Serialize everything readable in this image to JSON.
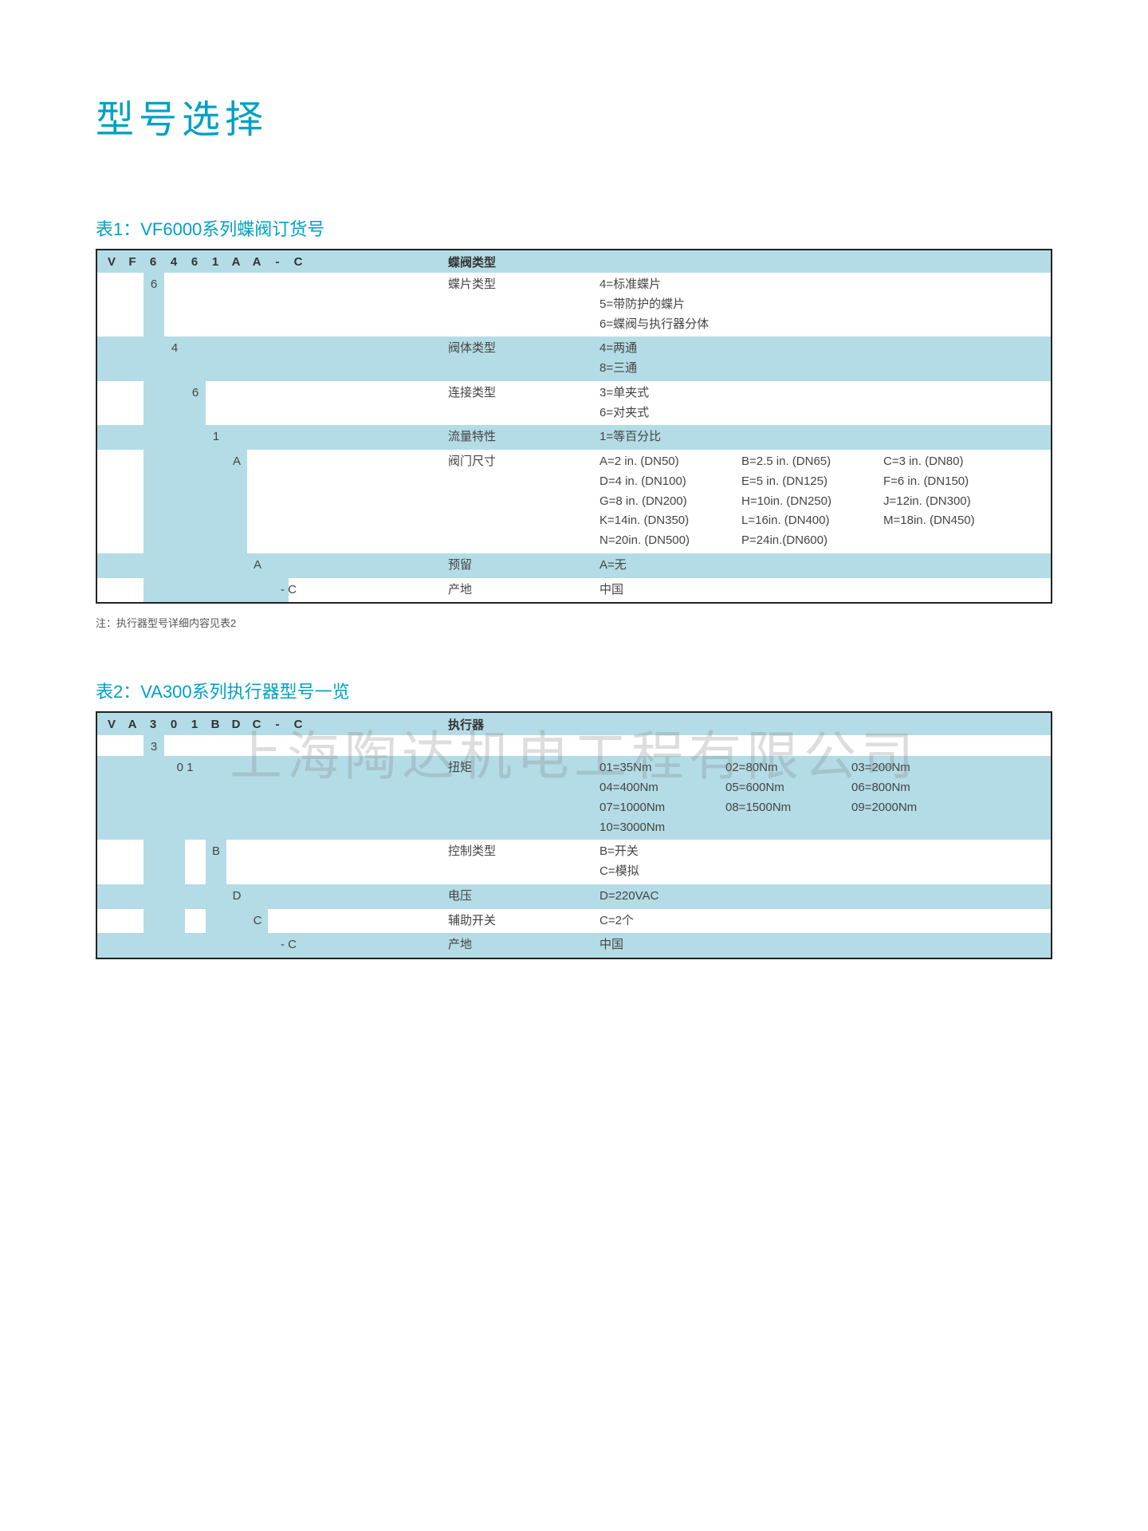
{
  "colors": {
    "accent": "#00a0c6",
    "band": "#b4dce6",
    "border": "#222222",
    "text": "#333333",
    "bg": "#ffffff",
    "watermark": "rgba(120,120,120,0.25)"
  },
  "page_title": "型号选择",
  "watermark_text": "上海陶达机电工程有限公司",
  "table1": {
    "heading": "表1：VF6000系列蝶阀订货号",
    "code_chars": [
      "V",
      "F",
      "6",
      "4",
      "6",
      "1",
      "A",
      "A",
      "-",
      "C"
    ],
    "header_label": "蝶阀类型",
    "note": "注：执行器型号详细内容见表2",
    "rows": [
      {
        "char": "6",
        "char_col": 2,
        "label": "蝶片类型",
        "values": [
          "4=标准蝶片",
          "5=带防护的蝶片",
          "6=蝶阀与执行器分体"
        ],
        "val_cols": 1,
        "stripe": false
      },
      {
        "char": "4",
        "char_col": 3,
        "label": "阀体类型",
        "values": [
          "4=两通",
          "8=三通"
        ],
        "val_cols": 1,
        "stripe": true
      },
      {
        "char": "6",
        "char_col": 4,
        "label": "连接类型",
        "values": [
          "3=单夹式",
          "6=对夹式"
        ],
        "val_cols": 1,
        "stripe": false
      },
      {
        "char": "1",
        "char_col": 5,
        "label": "流量特性",
        "values": [
          "1=等百分比"
        ],
        "val_cols": 1,
        "stripe": true
      },
      {
        "char": "A",
        "char_col": 6,
        "label": "阀门尺寸",
        "values": [
          "A=2 in. (DN50)",
          "B=2.5 in. (DN65)",
          "C=3 in. (DN80)",
          "D=4 in. (DN100)",
          "E=5 in. (DN125)",
          "F=6 in. (DN150)",
          "G=8 in. (DN200)",
          "H=10in. (DN250)",
          "J=12in. (DN300)",
          "K=14in. (DN350)",
          "L=16in. (DN400)",
          "M=18in. (DN450)",
          "N=20in. (DN500)",
          "P=24in.(DN600)"
        ],
        "val_cols": 2,
        "stripe": false
      },
      {
        "char": "A",
        "char_col": 7,
        "label": "预留",
        "values": [
          "A=无"
        ],
        "val_cols": 1,
        "stripe": true
      },
      {
        "char": "- C",
        "char_col": 8,
        "label": "产地",
        "values": [
          "中国"
        ],
        "val_cols": 1,
        "stripe": false
      }
    ]
  },
  "table2": {
    "heading": "表2：VA300系列执行器型号一览",
    "code_chars": [
      "V",
      "A",
      "3",
      "0",
      "1",
      "B",
      "D",
      "C",
      "-",
      "C"
    ],
    "header_label": "执行器",
    "rows": [
      {
        "char": "3",
        "char_col": 2,
        "label": "",
        "values": [],
        "val_cols": 1,
        "stripe": false
      },
      {
        "char": "0 1",
        "char_col": 3,
        "label": "扭矩",
        "values": [
          "01=35Nm",
          "02=80Nm",
          "03=200Nm",
          "04=400Nm",
          "05=600Nm",
          "06=800Nm",
          "07=1000Nm",
          "08=1500Nm",
          "09=2000Nm",
          "10=3000Nm"
        ],
        "val_cols": 3,
        "stripe": true
      },
      {
        "char": "B",
        "char_col": 5,
        "label": "控制类型",
        "values": [
          "B=开关",
          "C=模拟"
        ],
        "val_cols": 1,
        "stripe": false
      },
      {
        "char": "D",
        "char_col": 6,
        "label": "电压",
        "values": [
          "D=220VAC"
        ],
        "val_cols": 1,
        "stripe": true
      },
      {
        "char": "C",
        "char_col": 7,
        "label": "辅助开关",
        "values": [
          "C=2个"
        ],
        "val_cols": 1,
        "stripe": false
      },
      {
        "char": "- C",
        "char_col": 8,
        "label": "产地",
        "values": [
          "中国"
        ],
        "val_cols": 1,
        "stripe": true
      }
    ]
  }
}
